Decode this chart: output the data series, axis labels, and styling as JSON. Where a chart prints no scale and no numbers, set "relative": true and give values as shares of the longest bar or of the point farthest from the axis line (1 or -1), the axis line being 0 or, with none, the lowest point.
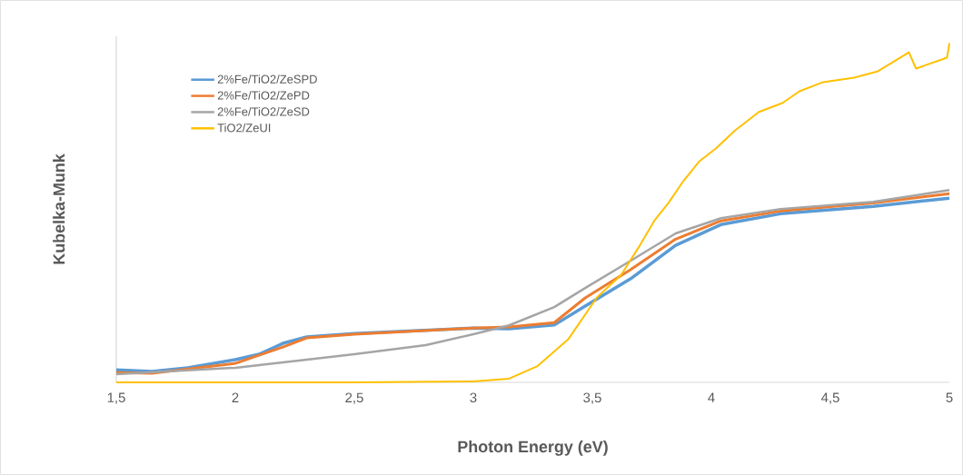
{
  "chart_data": {
    "type": "line",
    "xlabel": "Photon Energy (eV)",
    "ylabel": "Kubelka-Munk",
    "relative": true,
    "tick_labels": "x",
    "legend": "top left",
    "xlim": [
      1.5,
      5
    ],
    "xticks": [
      {
        "value": 1.5,
        "label": "1,5"
      },
      2,
      {
        "value": 2.5,
        "label": "2,5"
      },
      3,
      {
        "value": 3.5,
        "label": "3,5"
      },
      4,
      {
        "value": 4.5,
        "label": "4,5"
      },
      5
    ],
    "series": [
      {
        "name": "2%Fe/TiO2/ZeSPD",
        "color": "#5b9bd5",
        "x": [
          1.5,
          1.65,
          1.8,
          2.0,
          2.1,
          2.2,
          2.3,
          2.5,
          3.0,
          3.15,
          3.34,
          3.47,
          3.66,
          3.85,
          4.04,
          4.29,
          4.68,
          5.0
        ],
        "values": [
          0.037,
          0.032,
          0.043,
          0.067,
          0.083,
          0.115,
          0.134,
          0.144,
          0.16,
          0.158,
          0.169,
          0.225,
          0.305,
          0.404,
          0.465,
          0.497,
          0.519,
          0.543
        ]
      },
      {
        "name": "2%Fe/TiO2/ZePD",
        "color": "#ed7d31",
        "x": [
          1.5,
          1.65,
          2.0,
          2.2,
          2.3,
          2.5,
          3.0,
          3.15,
          3.34,
          3.47,
          3.66,
          3.85,
          4.04,
          4.29,
          4.68,
          5.0
        ],
        "values": [
          0.029,
          0.027,
          0.056,
          0.104,
          0.131,
          0.142,
          0.16,
          0.163,
          0.176,
          0.249,
          0.332,
          0.422,
          0.476,
          0.505,
          0.529,
          0.556
        ]
      },
      {
        "name": "2%Fe/TiO2/ZeSD",
        "color": "#a5a5a5",
        "x": [
          1.5,
          2.0,
          2.5,
          2.8,
          3.0,
          3.15,
          3.34,
          3.47,
          3.66,
          3.85,
          4.04,
          4.29,
          4.68,
          5.0
        ],
        "values": [
          0.024,
          0.043,
          0.083,
          0.11,
          0.142,
          0.168,
          0.222,
          0.278,
          0.358,
          0.439,
          0.484,
          0.511,
          0.532,
          0.567
        ]
      },
      {
        "name": "TiO2/ZeUI",
        "color": "#ffc000",
        "x": [
          1.5,
          2.5,
          3.0,
          3.15,
          3.27,
          3.4,
          3.52,
          3.62,
          3.7,
          3.76,
          3.82,
          3.88,
          3.95,
          4.02,
          4.1,
          4.2,
          4.3,
          4.37,
          4.47,
          4.6,
          4.7,
          4.83,
          4.86,
          4.99,
          5.0
        ],
        "values": [
          0,
          0,
          0.003,
          0.011,
          0.048,
          0.128,
          0.251,
          0.316,
          0.404,
          0.476,
          0.529,
          0.591,
          0.652,
          0.69,
          0.743,
          0.797,
          0.824,
          0.858,
          0.885,
          0.898,
          0.917,
          0.973,
          0.925,
          0.957,
          1
        ]
      }
    ]
  }
}
